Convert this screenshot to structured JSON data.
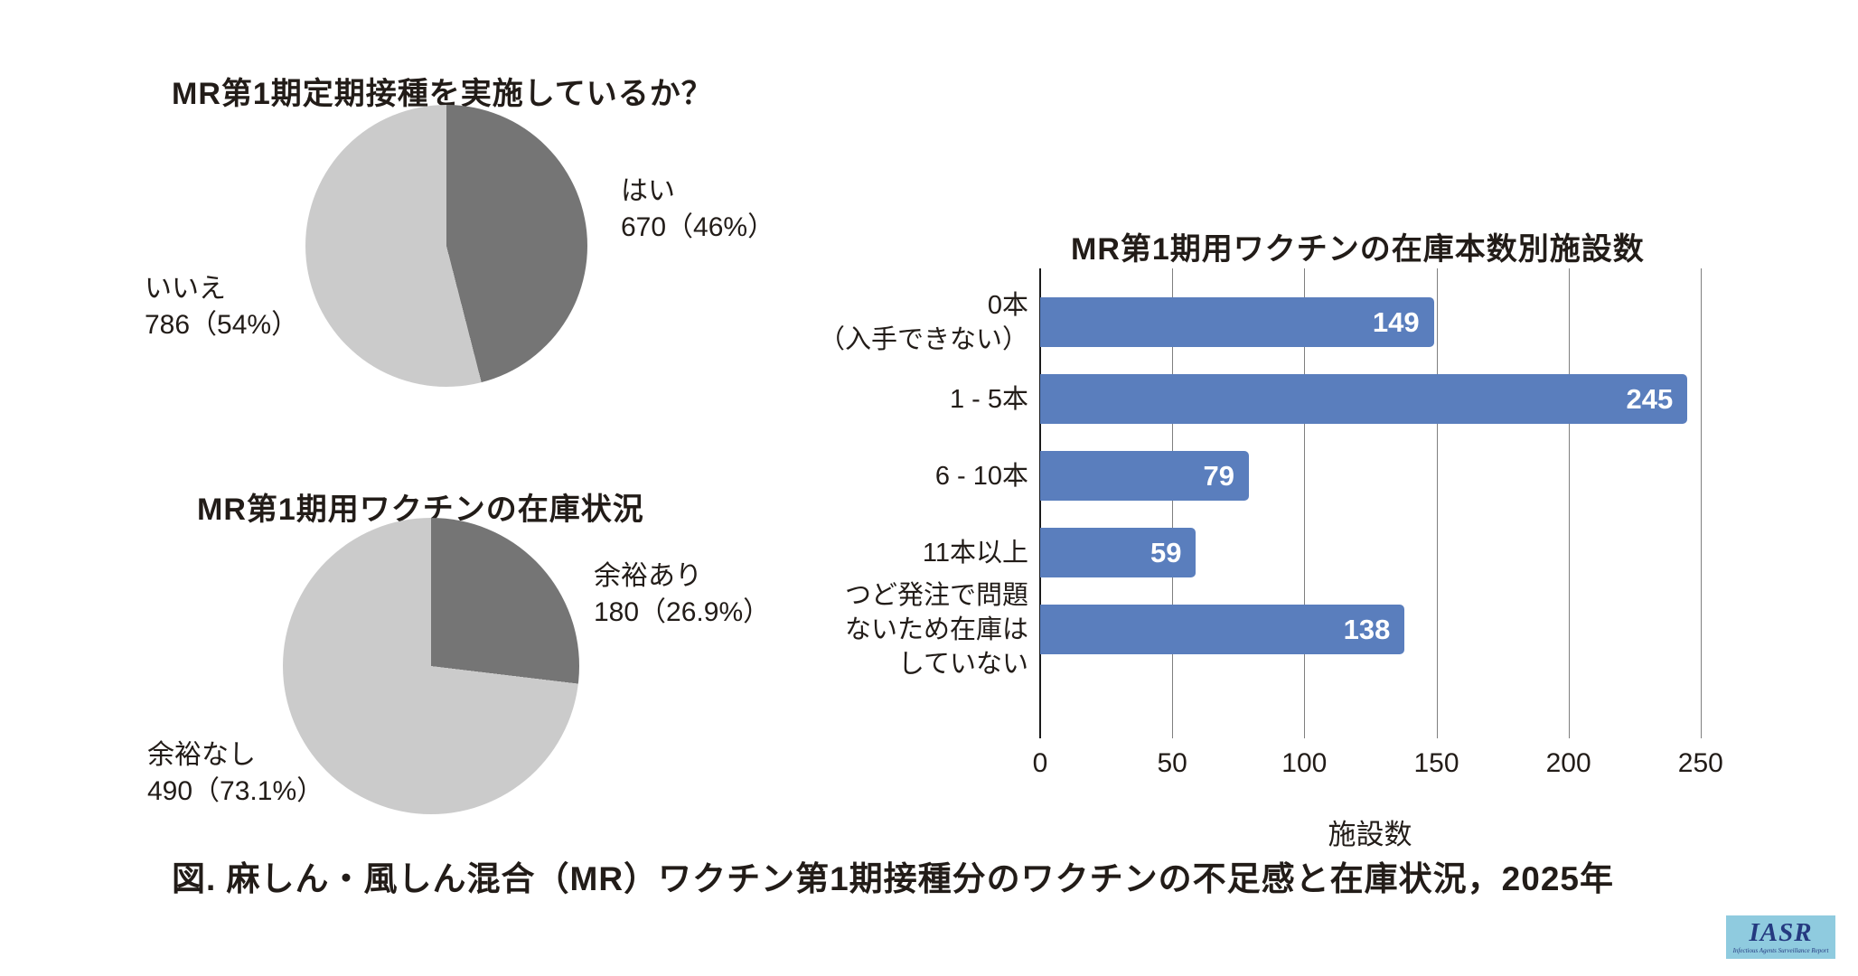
{
  "figure": {
    "caption": "図. 麻しん・風しん混合（MR）ワクチン第1期接種分のワクチンの不足感と在庫状況，2025年",
    "logo": {
      "text": "IASR",
      "subtext": "Infectious Agents Surveillance Report",
      "bg_color": "#8fcbdf",
      "text_color": "#253a80"
    }
  },
  "colors": {
    "pie_dark": "#757575",
    "pie_light": "#cbcbcb",
    "bar_blue": "#5a7ebd",
    "gridline": "#7f7f7f",
    "axis": "#1a1a1a",
    "text": "#221c18"
  },
  "chart_data": [
    {
      "type": "pie",
      "title": "MR第1期定期接種を実施しているか？",
      "start_angle_deg": 0,
      "direction": "clockwise",
      "slices": [
        {
          "label": "はい",
          "value": 670,
          "percent": 46,
          "value_text": "670（46%）",
          "color_key": "pie_dark"
        },
        {
          "label": "いいえ",
          "value": 786,
          "percent": 54,
          "value_text": "786（54%）",
          "color_key": "pie_light"
        }
      ]
    },
    {
      "type": "pie",
      "title": "MR第1期用ワクチンの在庫状況",
      "start_angle_deg": 0,
      "direction": "clockwise",
      "slices": [
        {
          "label": "余裕あり",
          "value": 180,
          "percent": 26.9,
          "value_text": "180（26.9%）",
          "color_key": "pie_dark"
        },
        {
          "label": "余裕なし",
          "value": 490,
          "percent": 73.1,
          "value_text": "490（73.1%）",
          "color_key": "pie_light"
        }
      ]
    },
    {
      "type": "bar",
      "orientation": "horizontal",
      "title": "MR第1期用ワクチンの在庫本数別施設数",
      "categories": [
        "0本\n（入手できない）",
        "1 - 5本",
        "6 - 10本",
        "11本以上",
        "つど発注で問題\nないため在庫は\nしていない"
      ],
      "values": [
        149,
        245,
        79,
        59,
        138
      ],
      "xlabel": "施設数",
      "x_ticks": [
        0,
        50,
        100,
        150,
        200,
        250
      ],
      "xlim": [
        0,
        287
      ],
      "grid": true,
      "legend": "none"
    }
  ]
}
